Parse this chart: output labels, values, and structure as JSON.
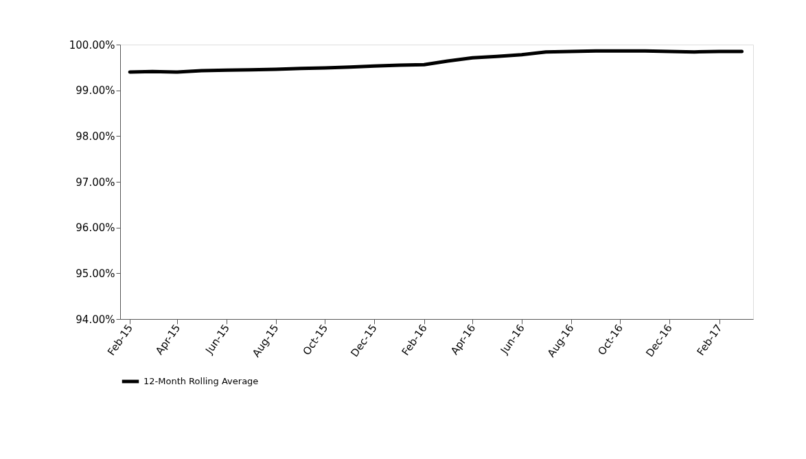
{
  "chart_data": {
    "type": "line",
    "x": [
      "2015-02",
      "2015-03",
      "2015-04",
      "2015-05",
      "2015-06",
      "2015-07",
      "2015-08",
      "2015-09",
      "2015-10",
      "2015-11",
      "2015-12",
      "2016-01",
      "2016-02",
      "2016-03",
      "2016-04",
      "2016-05",
      "2016-06",
      "2016-07",
      "2016-08",
      "2016-09",
      "2016-10",
      "2016-11",
      "2016-12",
      "2017-01",
      "2017-02",
      "2017-03"
    ],
    "series": [
      {
        "name": "12-Month Rolling Average",
        "color": "#000000",
        "values": [
          99.4,
          99.41,
          99.4,
          99.43,
          99.44,
          99.45,
          99.46,
          99.48,
          99.49,
          99.51,
          99.53,
          99.55,
          99.56,
          99.64,
          99.71,
          99.74,
          99.78,
          99.84,
          99.85,
          99.86,
          99.86,
          99.86,
          99.85,
          99.84,
          99.85,
          99.85
        ]
      }
    ],
    "xlim": [
      "2015-01-20",
      "2017-03-15"
    ],
    "xticks": [
      {
        "value": "2015-02-01",
        "label": "Feb-15"
      },
      {
        "value": "2015-04-01",
        "label": "Apr-15"
      },
      {
        "value": "2015-06-01",
        "label": "Jun-15"
      },
      {
        "value": "2015-08-01",
        "label": "Aug-15"
      },
      {
        "value": "2015-10-01",
        "label": "Oct-15"
      },
      {
        "value": "2015-12-01",
        "label": "Dec-15"
      },
      {
        "value": "2016-02-01",
        "label": "Feb-16"
      },
      {
        "value": "2016-04-01",
        "label": "Apr-16"
      },
      {
        "value": "2016-06-01",
        "label": "Jun-16"
      },
      {
        "value": "2016-08-01",
        "label": "Aug-16"
      },
      {
        "value": "2016-10-01",
        "label": "Oct-16"
      },
      {
        "value": "2016-12-01",
        "label": "Dec-16"
      },
      {
        "value": "2017-02-01",
        "label": "Feb-17"
      }
    ],
    "ylim": [
      94,
      100
    ],
    "yticks": [
      {
        "value": 94,
        "label": "94.00%"
      },
      {
        "value": 95,
        "label": "95.00%"
      },
      {
        "value": 96,
        "label": "96.00%"
      },
      {
        "value": 97,
        "label": "97.00%"
      },
      {
        "value": 98,
        "label": "98.00%"
      },
      {
        "value": 99,
        "label": "99.00%"
      },
      {
        "value": 100,
        "label": "100.00%"
      }
    ],
    "legend": "bottom",
    "line_style": "solid",
    "marker": "none",
    "grid": false
  }
}
